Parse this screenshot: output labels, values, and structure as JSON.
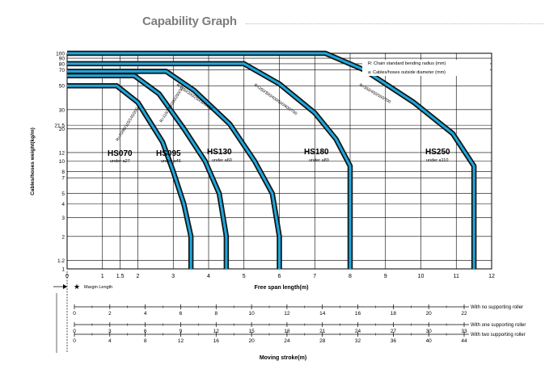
{
  "page": {
    "title": "Capability Graph"
  },
  "chart_data": {
    "type": "line",
    "title": "Capability Graph",
    "xlabel": "Free span length(m)",
    "ylabel": "Cables/hoses weight(kg/m)",
    "yscale": "log",
    "xlim": [
      0,
      12
    ],
    "ylim": [
      1,
      100
    ],
    "x_ticks": [
      "0",
      "1",
      "1.5",
      "2",
      "3",
      "4",
      "5",
      "6",
      "7",
      "8",
      "9",
      "10",
      "11",
      "12"
    ],
    "x_tick_values": [
      0,
      1,
      1.5,
      2,
      3,
      4,
      5,
      6,
      7,
      8,
      9,
      10,
      11,
      12
    ],
    "y_ticks": [
      "1",
      "1.2",
      "2",
      "3",
      "4",
      "5",
      "7",
      "8",
      "10",
      "12",
      "20",
      "21.5",
      "30",
      "50",
      "70",
      "80",
      "90",
      "100"
    ],
    "y_tick_values": [
      1,
      1.2,
      2,
      3,
      4,
      5,
      7,
      8,
      10,
      12,
      20,
      21.5,
      30,
      50,
      70,
      80,
      90,
      100
    ],
    "grid": true,
    "legend": {
      "r": "R: Chain standard bending radius (mm)",
      "a": "a: Cables/hoses outside diameter (mm)",
      "placement": "top-right"
    },
    "series": [
      {
        "name": "HS070",
        "sub": "under a27",
        "radii": "R=70/90/115/145/200",
        "x": [
          0,
          1.4,
          2.0,
          2.7,
          3.0,
          3.3,
          3.5,
          3.5,
          3.5
        ],
        "y": [
          50,
          50,
          35,
          15,
          8,
          4,
          2,
          1.3,
          1
        ]
      },
      {
        "name": "HS095",
        "sub": "under a46",
        "radii": "R=115/145/200/250/300",
        "x": [
          0,
          1.9,
          2.6,
          3.3,
          3.9,
          4.3,
          4.5,
          4.5,
          4.5
        ],
        "y": [
          62,
          62,
          42,
          20,
          10,
          5,
          2,
          1.3,
          1
        ]
      },
      {
        "name": "HS130",
        "sub": "under a60",
        "radii": "R=150/200/250/300/350",
        "x": [
          0,
          2.8,
          3.6,
          4.6,
          5.3,
          5.8,
          6.0,
          6.0,
          6.0
        ],
        "y": [
          68,
          68,
          45,
          22,
          10,
          5,
          2,
          1.3,
          1
        ]
      },
      {
        "name": "HS180",
        "sub": "under a80",
        "radii": "R=250/300/400/500/600/700",
        "x": [
          0,
          5.0,
          6.0,
          7.0,
          7.6,
          8.0,
          8.0,
          8.0
        ],
        "y": [
          80,
          80,
          52,
          28,
          16,
          9,
          2,
          1
        ]
      },
      {
        "name": "HS250",
        "sub": "under a110",
        "radii": "R=350/450/550/700",
        "x": [
          0,
          7.3,
          8.4,
          9.8,
          10.9,
          11.5,
          11.5,
          11.5
        ],
        "y": [
          100,
          100,
          70,
          35,
          18,
          9,
          2,
          1
        ]
      }
    ],
    "margin_label": "Margin Length",
    "lower_axes": {
      "label": "Moving stroke(m)",
      "rows": [
        {
          "label": "With no supporting roller",
          "ticks": [
            0,
            2,
            4,
            6,
            8,
            10,
            12,
            14,
            16,
            18,
            20,
            22
          ]
        },
        {
          "label": "With one supporting roller",
          "ticks": [
            0,
            3,
            6,
            9,
            12,
            15,
            18,
            21,
            24,
            27,
            30,
            33
          ]
        },
        {
          "label": "With two supporting roller",
          "ticks": [
            0,
            4,
            8,
            12,
            16,
            20,
            24,
            28,
            32,
            36,
            40,
            44
          ]
        }
      ]
    }
  }
}
